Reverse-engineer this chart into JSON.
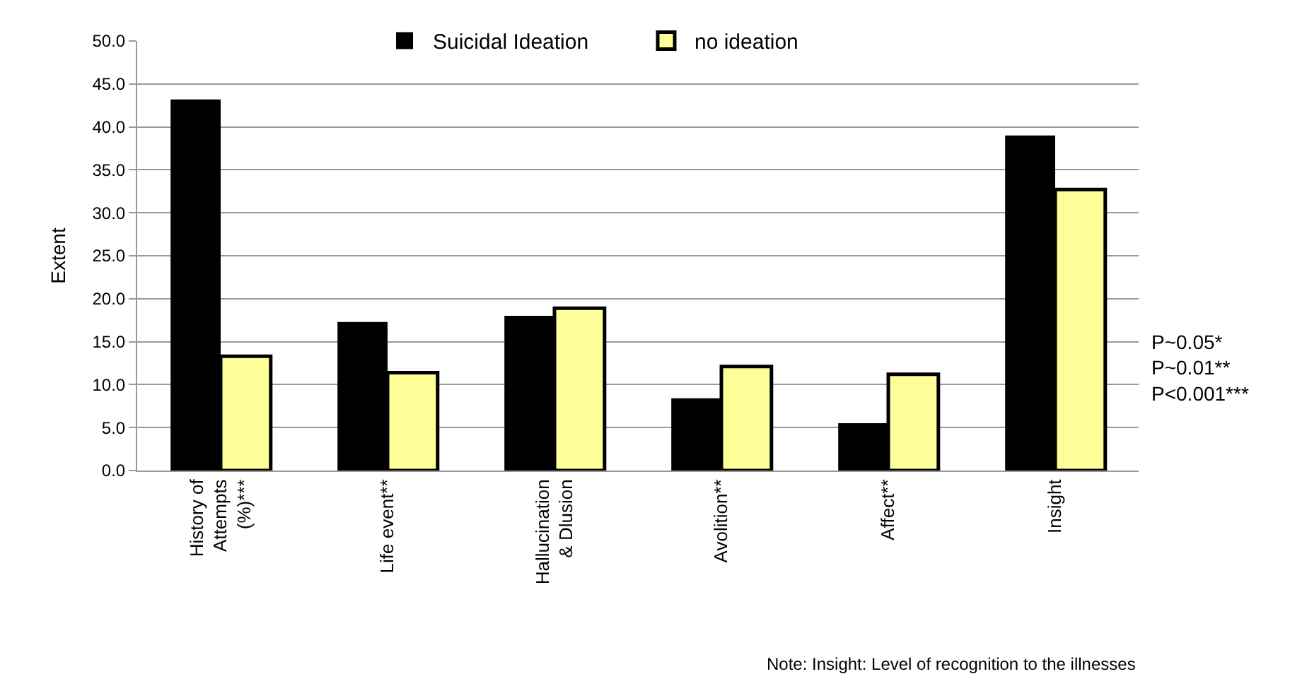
{
  "chart_data": {
    "type": "bar",
    "ylabel": "Extent",
    "categories": [
      "History of\nAttempts\n(%)***",
      "Life event**",
      "Hallucination\n& Dlusion",
      "Avolition**",
      "Affect**",
      "Insight"
    ],
    "series": [
      {
        "name": "Suicidal Ideation",
        "color": "#000000",
        "values": [
          43.2,
          17.3,
          18.0,
          8.4,
          5.5,
          39.0
        ]
      },
      {
        "name": "no ideation",
        "color": "#ffff99",
        "values": [
          13.3,
          11.4,
          18.9,
          12.1,
          11.2,
          32.7
        ]
      }
    ],
    "ylim": [
      0,
      50
    ],
    "yticks": [
      {
        "value": 0,
        "label": "0.0"
      },
      {
        "value": 5,
        "label": "5.0"
      },
      {
        "value": 10,
        "label": "10.0"
      },
      {
        "value": 15,
        "label": "15.0"
      },
      {
        "value": 20,
        "label": "20.0"
      },
      {
        "value": 25,
        "label": "25.0"
      },
      {
        "value": 30,
        "label": "30.0"
      },
      {
        "value": 35,
        "label": "35.0"
      },
      {
        "value": 40,
        "label": "40.0"
      },
      {
        "value": 45,
        "label": "45.0"
      },
      {
        "value": 50,
        "label": "50.0"
      }
    ],
    "grid": "y",
    "legend": "top",
    "annotations": [
      "P~0.05*\nP~0.01**\nP<0.001***",
      "Note: Insight: Level of recognition to the illnesses"
    ]
  }
}
